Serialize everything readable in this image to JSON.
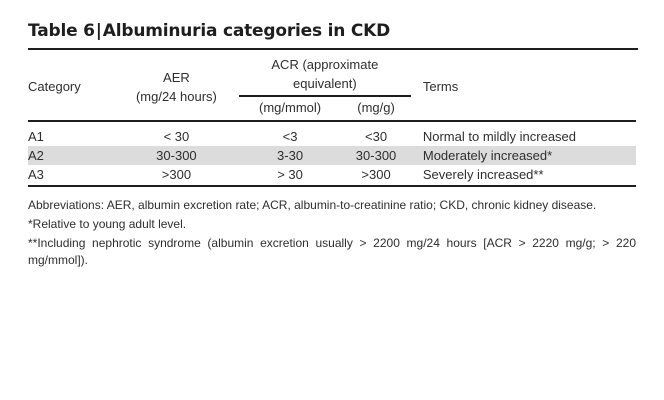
{
  "title": {
    "label": "Table 6",
    "separator": "|",
    "text": "Albuminuria categories in CKD"
  },
  "header": {
    "category": "Category",
    "aer_line1": "AER",
    "aer_line2": "(mg/24 hours)",
    "acr_group_line1": "ACR (approximate",
    "acr_group_line2": "equivalent)",
    "acr_mmol": "(mg/mmol)",
    "acr_mg": "(mg/g)",
    "terms": "Terms"
  },
  "rows": [
    {
      "category": "A1",
      "aer": "< 30",
      "acr_mmol": "<3",
      "acr_mg": "<30",
      "terms": "Normal to mildly increased"
    },
    {
      "category": "A2",
      "aer": "30-300",
      "acr_mmol": "3-30",
      "acr_mg": "30-300",
      "terms": "Moderately increased*"
    },
    {
      "category": "A3",
      "aer": ">300",
      "acr_mmol": "> 30",
      "acr_mg": ">300",
      "terms": "Severely increased**"
    }
  ],
  "notes": {
    "abbreviations": "Abbreviations: AER, albumin excretion rate; ACR, albumin-to-creatinine ratio; CKD, chronic kidney disease.",
    "footnote1": "*Relative to young adult level.",
    "footnote2": "**Including nephrotic syndrome (albumin excretion usually > 2200 mg/24 hours [ACR > 2220 mg/g; > 220 mg/mmol])."
  },
  "colors": {
    "shaded_row": "#dcdcdc",
    "rule": "#1e1e1e",
    "text": "#2e2e2e"
  }
}
